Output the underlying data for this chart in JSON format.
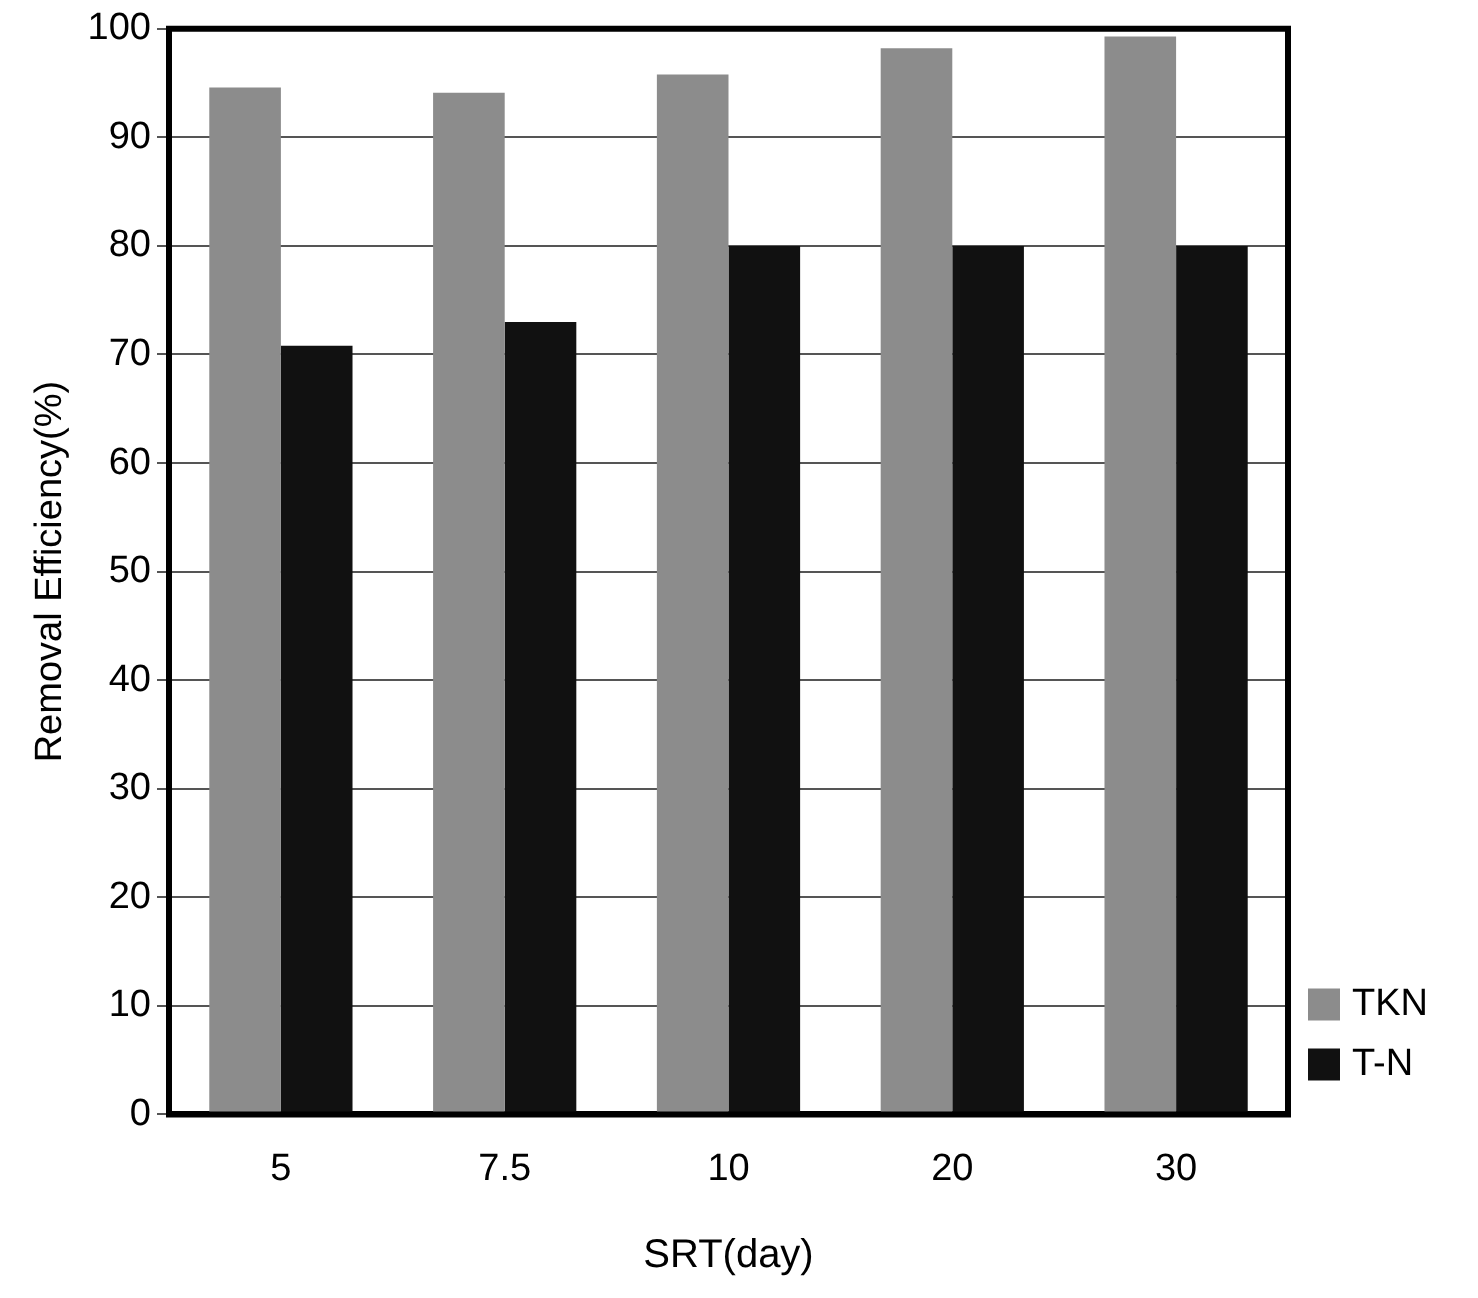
{
  "chart_data": {
    "type": "bar",
    "xlabel": "SRT(day)",
    "ylabel": "Removal Efficiency(%)",
    "categories": [
      "5",
      "7.5",
      "10",
      "20",
      "30"
    ],
    "series": [
      {
        "name": "TKN",
        "color": "#8c8c8c",
        "values": [
          94.6,
          94.1,
          95.8,
          98.2,
          99.3
        ]
      },
      {
        "name": "T-N",
        "color": "#111111",
        "values": [
          70.8,
          73,
          80,
          80,
          80
        ]
      }
    ],
    "ylim": [
      0,
      100
    ],
    "yticks": [
      0,
      10,
      20,
      30,
      40,
      50,
      60,
      70,
      80,
      90,
      100
    ],
    "grid": "y",
    "legend": "bottom right"
  }
}
